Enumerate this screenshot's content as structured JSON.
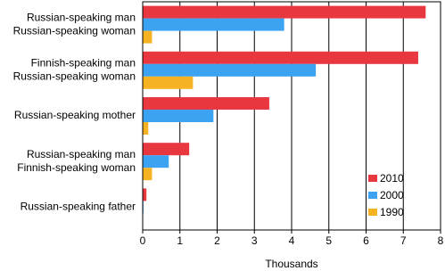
{
  "chart_data": {
    "type": "bar",
    "orientation": "horizontal",
    "x_label": "Thousands",
    "categories": [
      [
        "Russian-speaking man",
        "Russian-speaking woman"
      ],
      [
        "Finnish-speaking man",
        "Russian-speaking woman"
      ],
      [
        "Russian-speaking mother"
      ],
      [
        "Russian-speaking man",
        "Finnish-speaking woman"
      ],
      [
        "Russian-speaking father"
      ]
    ],
    "series": [
      {
        "name": "2010",
        "color": "#e8373f",
        "values": [
          7.6,
          7.4,
          3.4,
          1.25,
          0.1
        ]
      },
      {
        "name": "2000",
        "color": "#3ba3f2",
        "values": [
          3.8,
          4.65,
          1.9,
          0.7,
          0.02
        ]
      },
      {
        "name": "1990",
        "color": "#f5b323",
        "values": [
          0.25,
          1.35,
          0.15,
          0.25,
          0
        ]
      }
    ],
    "xlim": [
      0,
      8
    ],
    "xticks": [
      0,
      1,
      2,
      3,
      4,
      5,
      6,
      7,
      8
    ],
    "grid": true,
    "legend": "lower right"
  }
}
